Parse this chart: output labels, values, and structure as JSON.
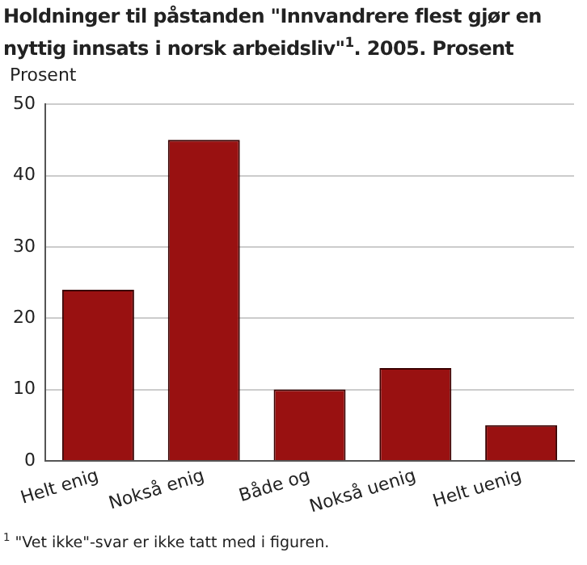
{
  "chart_data": {
    "type": "bar",
    "title": "Holdninger til påstanden \"Innvandrere flest gjør en nyttig innsats i norsk arbeidsliv\"$^{1}$. 2005. Prosent",
    "ylabel": "Prosent",
    "categories": [
      "Helt enig",
      "Nokså enig",
      "Både og",
      "Nokså uenig",
      "Helt uenig"
    ],
    "values": [
      24,
      45,
      10,
      13,
      5
    ],
    "color": "#991111",
    "ylim": [
      0,
      50
    ],
    "yticks": [
      0,
      10,
      20,
      30,
      40,
      50
    ],
    "grid": "y",
    "legend": false,
    "annotations": [
      "$^{1}$ \"Vet ikke\"-svar er ikke tatt med i figuren."
    ]
  }
}
